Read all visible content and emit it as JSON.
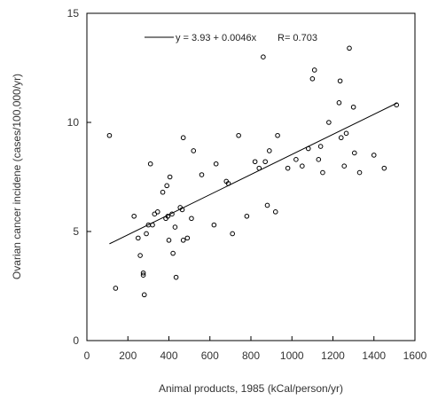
{
  "chart_data": {
    "type": "scatter",
    "title": "",
    "xlabel": "Animal products, 1985 (kCal/person/yr)",
    "ylabel": "Ovarian cancer incidene (cases/100,000/yr)",
    "xlim": [
      0,
      1600
    ],
    "ylim": [
      0,
      15
    ],
    "xticks": [
      "0",
      "200",
      "400",
      "600",
      "800",
      "1000",
      "1200",
      "1400",
      "1600"
    ],
    "yticks": [
      "0",
      "5",
      "10",
      "15"
    ],
    "grid": false,
    "legend": {
      "position": "top-center",
      "equation": "y = 3.93 + 0.0046x",
      "r": "R= 0.703"
    },
    "regression": {
      "intercept": 3.93,
      "slope": 0.0046,
      "x_start": 110,
      "x_end": 1515
    },
    "series": [
      {
        "marker": "open-circle",
        "points": [
          [
            110,
            9.4
          ],
          [
            140,
            2.4
          ],
          [
            230,
            5.7
          ],
          [
            250,
            4.7
          ],
          [
            260,
            3.9
          ],
          [
            275,
            3.1
          ],
          [
            275,
            3.0
          ],
          [
            280,
            2.1
          ],
          [
            290,
            4.9
          ],
          [
            300,
            5.3
          ],
          [
            310,
            8.1
          ],
          [
            320,
            5.3
          ],
          [
            330,
            5.8
          ],
          [
            345,
            5.9
          ],
          [
            370,
            6.8
          ],
          [
            385,
            5.6
          ],
          [
            390,
            7.1
          ],
          [
            395,
            5.7
          ],
          [
            400,
            4.6
          ],
          [
            405,
            7.5
          ],
          [
            415,
            5.8
          ],
          [
            420,
            4.0
          ],
          [
            430,
            5.2
          ],
          [
            435,
            2.9
          ],
          [
            455,
            6.1
          ],
          [
            465,
            6.0
          ],
          [
            470,
            4.6
          ],
          [
            470,
            9.3
          ],
          [
            490,
            4.7
          ],
          [
            510,
            5.6
          ],
          [
            520,
            8.7
          ],
          [
            560,
            7.6
          ],
          [
            620,
            5.3
          ],
          [
            630,
            8.1
          ],
          [
            680,
            7.3
          ],
          [
            690,
            7.2
          ],
          [
            710,
            4.9
          ],
          [
            740,
            9.4
          ],
          [
            780,
            5.7
          ],
          [
            820,
            8.2
          ],
          [
            840,
            7.9
          ],
          [
            860,
            13.0
          ],
          [
            870,
            8.2
          ],
          [
            880,
            6.2
          ],
          [
            890,
            8.7
          ],
          [
            920,
            5.9
          ],
          [
            930,
            9.4
          ],
          [
            980,
            7.9
          ],
          [
            1020,
            8.3
          ],
          [
            1050,
            8.0
          ],
          [
            1080,
            8.8
          ],
          [
            1100,
            12.0
          ],
          [
            1110,
            12.4
          ],
          [
            1130,
            8.3
          ],
          [
            1140,
            8.9
          ],
          [
            1150,
            7.7
          ],
          [
            1180,
            10.0
          ],
          [
            1230,
            10.9
          ],
          [
            1235,
            11.9
          ],
          [
            1240,
            9.3
          ],
          [
            1255,
            8.0
          ],
          [
            1265,
            9.5
          ],
          [
            1280,
            13.4
          ],
          [
            1300,
            10.7
          ],
          [
            1305,
            8.6
          ],
          [
            1330,
            7.7
          ],
          [
            1400,
            8.5
          ],
          [
            1450,
            7.9
          ],
          [
            1510,
            10.8
          ]
        ]
      }
    ]
  }
}
